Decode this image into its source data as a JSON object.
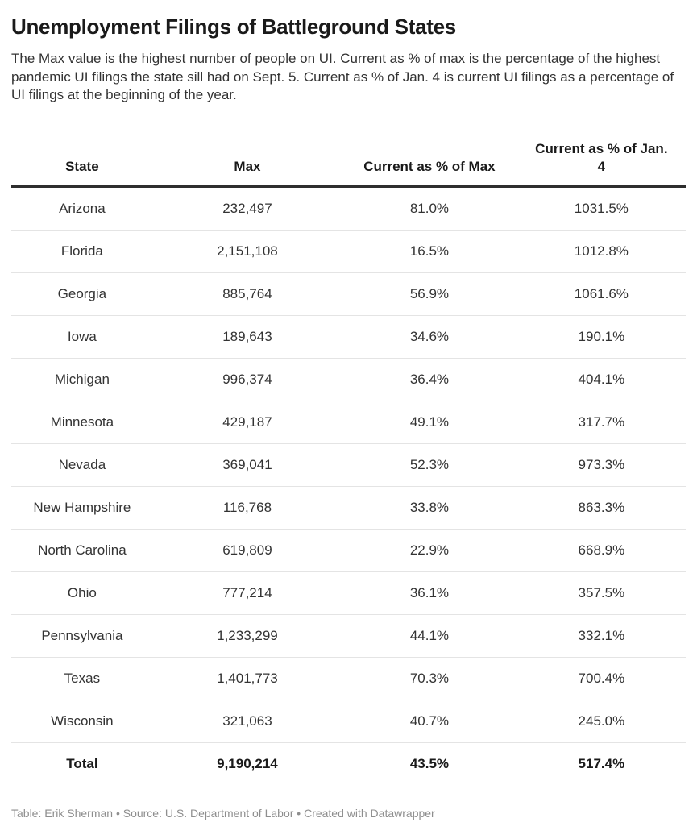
{
  "colors": {
    "title_text": "#1a1a1a",
    "body_text": "#333333",
    "header_border": "#2e2e2e",
    "row_border": "#e4e4e4",
    "footer_text": "#8e8e8e",
    "background": "#ffffff"
  },
  "chart_data": {
    "type": "table",
    "title": "Unemployment Filings of Battleground States",
    "description": "The Max value is the highest number of people on UI. Current as % of max is the percentage of the highest pandemic UI filings the state sill had on Sept. 5. Current as % of Jan. 4 is current UI filings as a percentage of UI filings at the beginning of the year.",
    "columns": [
      "State",
      "Max",
      "Current as % of Max",
      "Current as % of Jan. 4"
    ],
    "rows": [
      [
        "Arizona",
        "232,497",
        "81.0%",
        "1031.5%"
      ],
      [
        "Florida",
        "2,151,108",
        "16.5%",
        "1012.8%"
      ],
      [
        "Georgia",
        "885,764",
        "56.9%",
        "1061.6%"
      ],
      [
        "Iowa",
        "189,643",
        "34.6%",
        "190.1%"
      ],
      [
        "Michigan",
        "996,374",
        "36.4%",
        "404.1%"
      ],
      [
        "Minnesota",
        "429,187",
        "49.1%",
        "317.7%"
      ],
      [
        "Nevada",
        "369,041",
        "52.3%",
        "973.3%"
      ],
      [
        "New Hampshire",
        "116,768",
        "33.8%",
        "863.3%"
      ],
      [
        "North Carolina",
        "619,809",
        "22.9%",
        "668.9%"
      ],
      [
        "Ohio",
        "777,214",
        "36.1%",
        "357.5%"
      ],
      [
        "Pennsylvania",
        "1,233,299",
        "44.1%",
        "332.1%"
      ],
      [
        "Texas",
        "1,401,773",
        "70.3%",
        "700.4%"
      ],
      [
        "Wisconsin",
        "321,063",
        "40.7%",
        "245.0%"
      ]
    ],
    "total_row": [
      "Total",
      "9,190,214",
      "43.5%",
      "517.4%"
    ],
    "footer": "Table: Erik Sherman • Source: U.S. Department of Labor • Created with Datawrapper"
  }
}
